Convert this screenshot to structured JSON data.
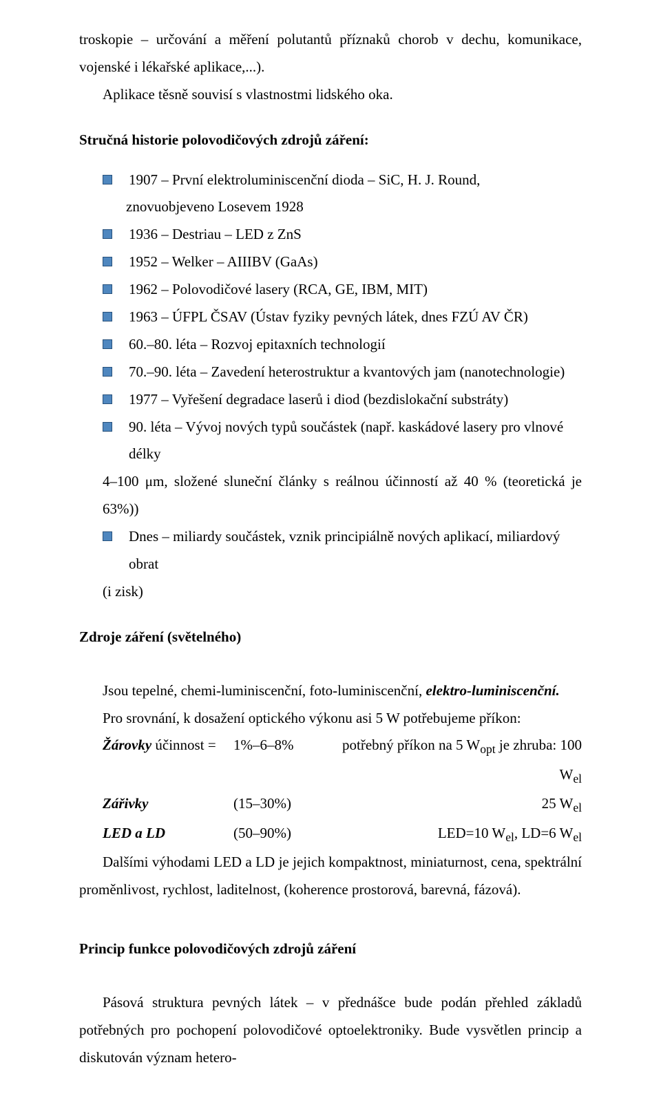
{
  "intro": {
    "line1": "troskopie – určování a měření polutantů příznaků chorob v dechu, komunikace, vojenské i lékařské aplikace,...).",
    "line2": "Aplikace těsně souvisí s vlastnostmi lidského oka."
  },
  "history": {
    "heading": "Stručná historie polovodičových zdrojů záření:",
    "items": [
      "1907 – První elektroluminiscenční dioda – SiC, H. J. Round,",
      "1936 – Destriau – LED z ZnS",
      "1952 – Welker – AIIIBV (GaAs)",
      "1962 – Polovodičové lasery (RCA, GE, IBM, MIT)",
      "1963 – ÚFPL ČSAV (Ústav fyziky pevných látek, dnes FZÚ AV ČR)",
      "60.–80. léta – Rozvoj epitaxních technologií",
      "70.–90. léta – Zavedení heterostruktur a kvantových jam (nanotechnologie)",
      "1977 – Vyřešení degradace laserů i diod (bezdislokační substráty)",
      "90. léta – Vývoj nových typů součástek (např. kaskádové lasery pro vlnové délky",
      "Dnes – miliardy součástek, vznik principiálně nových aplikací, miliardový obrat"
    ],
    "continuation0": "znovuobjeveno Losevem 1928",
    "continuation8": "4–100 μm, složené sluneční články s reálnou účinností až 40 % (teoretická je 63%))",
    "continuation9": "(i zisk)"
  },
  "sources": {
    "heading": "Zdroje záření (světelného)",
    "p1_a": "Jsou tepelné, chemi-luminiscenční, foto-luminiscenční, ",
    "p1_b": "elektro-luminiscenční.",
    "p2": "Pro srovnání, k dosažení optického výkonu asi 5 W potřebujeme příkon:",
    "eff": [
      {
        "label_i": "Žárovky",
        "label_rest": " účinnost =",
        "val": "1%–6–8%",
        "need_pre": "potřebný příkon na 5 W",
        "need_sub": "opt",
        "need_mid": " je zhruba: 100 W",
        "need_sub2": "el"
      },
      {
        "label_i": "Zářivky",
        "label_rest": "",
        "val": "(15–30%)",
        "need_pre": "25 W",
        "need_sub": "el",
        "need_mid": "",
        "need_sub2": ""
      },
      {
        "label_i": "LED a LD",
        "label_rest": "",
        "val": "(50–90%)",
        "need_pre": "LED=10 W",
        "need_sub": "el",
        "need_mid": ", LD=6 W",
        "need_sub2": "el"
      }
    ],
    "p3": "Dalšími výhodami LED a LD je jejich kompaktnost, miniaturnost, cena, spektrální proměnlivost, rychlost, laditelnost, (koherence prostorová, barevná, fázová)."
  },
  "principle": {
    "heading": "Princip funkce polovodičových zdrojů záření",
    "p1": "Pásová struktura pevných látek – v přednášce bude podán přehled základů potřebných pro pochopení polovodičové optoelektroniky. Bude vysvětlen princip a diskutován význam hetero-"
  }
}
